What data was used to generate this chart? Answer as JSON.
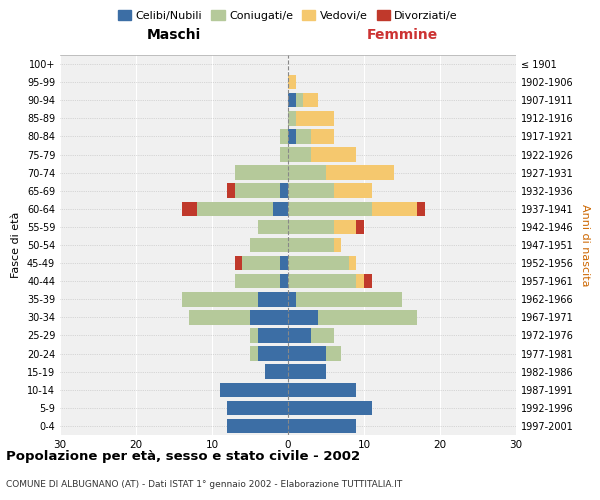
{
  "age_groups": [
    "0-4",
    "5-9",
    "10-14",
    "15-19",
    "20-24",
    "25-29",
    "30-34",
    "35-39",
    "40-44",
    "45-49",
    "50-54",
    "55-59",
    "60-64",
    "65-69",
    "70-74",
    "75-79",
    "80-84",
    "85-89",
    "90-94",
    "95-99",
    "100+"
  ],
  "birth_years": [
    "1997-2001",
    "1992-1996",
    "1987-1991",
    "1982-1986",
    "1977-1981",
    "1972-1976",
    "1967-1971",
    "1962-1966",
    "1957-1961",
    "1952-1956",
    "1947-1951",
    "1942-1946",
    "1937-1941",
    "1932-1936",
    "1927-1931",
    "1922-1926",
    "1917-1921",
    "1912-1916",
    "1907-1911",
    "1902-1906",
    "≤ 1901"
  ],
  "colors": {
    "celibi": "#3c6ea5",
    "coniugati": "#b5c99a",
    "vedovi": "#f5c86e",
    "divorziati": "#c0392b"
  },
  "male": {
    "celibi": [
      8,
      8,
      9,
      3,
      4,
      4,
      5,
      4,
      1,
      1,
      0,
      0,
      2,
      1,
      0,
      0,
      0,
      0,
      0,
      0,
      0
    ],
    "coniugati": [
      0,
      0,
      0,
      0,
      1,
      1,
      8,
      10,
      6,
      5,
      5,
      4,
      10,
      6,
      7,
      1,
      1,
      0,
      0,
      0,
      0
    ],
    "vedovi": [
      0,
      0,
      0,
      0,
      0,
      0,
      0,
      0,
      0,
      0,
      0,
      0,
      0,
      0,
      0,
      0,
      0,
      0,
      0,
      0,
      0
    ],
    "divorziati": [
      0,
      0,
      0,
      0,
      0,
      0,
      0,
      0,
      0,
      1,
      0,
      0,
      2,
      1,
      0,
      0,
      0,
      0,
      0,
      0,
      0
    ]
  },
  "female": {
    "nubili": [
      9,
      11,
      9,
      5,
      5,
      3,
      4,
      1,
      0,
      0,
      0,
      0,
      0,
      0,
      0,
      0,
      1,
      0,
      1,
      0,
      0
    ],
    "coniugate": [
      0,
      0,
      0,
      0,
      2,
      3,
      13,
      14,
      9,
      8,
      6,
      6,
      11,
      6,
      5,
      3,
      2,
      1,
      1,
      0,
      0
    ],
    "vedove": [
      0,
      0,
      0,
      0,
      0,
      0,
      0,
      0,
      1,
      1,
      1,
      3,
      6,
      5,
      9,
      6,
      3,
      5,
      2,
      1,
      0
    ],
    "divorziate": [
      0,
      0,
      0,
      0,
      0,
      0,
      0,
      0,
      1,
      0,
      0,
      1,
      1,
      0,
      0,
      0,
      0,
      0,
      0,
      0,
      0
    ]
  },
  "title": "Popolazione per età, sesso e stato civile - 2002",
  "subtitle": "COMUNE DI ALBUGNANO (AT) - Dati ISTAT 1° gennaio 2002 - Elaborazione TUTTITALIA.IT",
  "xlabel_left": "Maschi",
  "xlabel_right": "Femmine",
  "ylabel_left": "Fasce di età",
  "ylabel_right": "Anni di nascita",
  "legend_labels": [
    "Celibi/Nubili",
    "Coniugati/e",
    "Vedovi/e",
    "Divorziati/e"
  ],
  "xlim": 30,
  "background_color": "#f0f0f0"
}
